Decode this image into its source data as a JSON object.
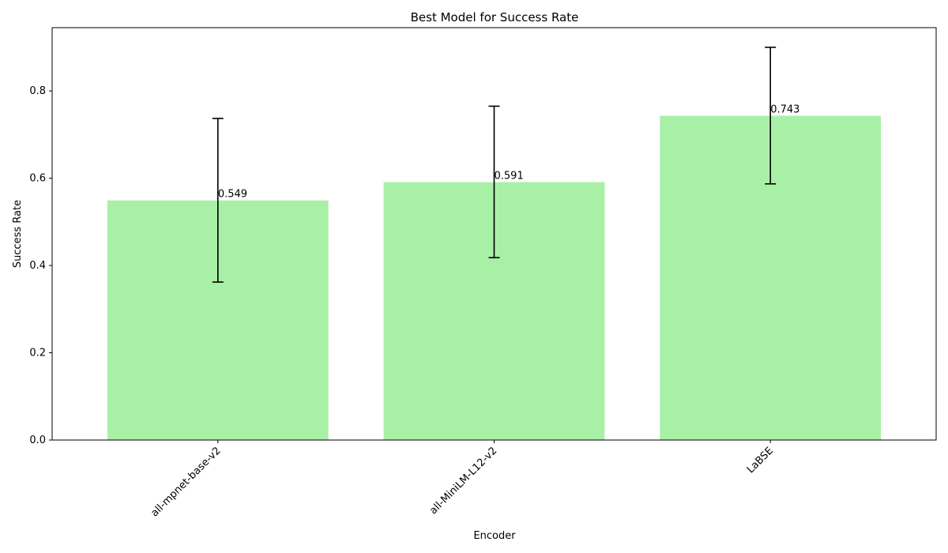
{
  "chart_data": {
    "type": "bar",
    "title": "Best Model for Success Rate",
    "xlabel": "Encoder",
    "ylabel": "Success Rate",
    "categories": [
      "all-mpnet-base-v2",
      "all-MiniLM-L12-v2",
      "LaBSE"
    ],
    "values": [
      0.549,
      0.591,
      0.743
    ],
    "value_labels": [
      "0.549",
      "0.591",
      "0.743"
    ],
    "error_low": [
      0.362,
      0.418,
      0.587
    ],
    "error_high": [
      0.737,
      0.765,
      0.9
    ],
    "ylim": [
      0,
      0.945
    ],
    "yticks": [
      0.0,
      0.2,
      0.4,
      0.6,
      0.8
    ],
    "ytick_labels": [
      "0.0",
      "0.2",
      "0.4",
      "0.6",
      "0.8"
    ],
    "bar_color": "#a8f0a6",
    "errorbar_color": "#000000",
    "grid": false
  }
}
